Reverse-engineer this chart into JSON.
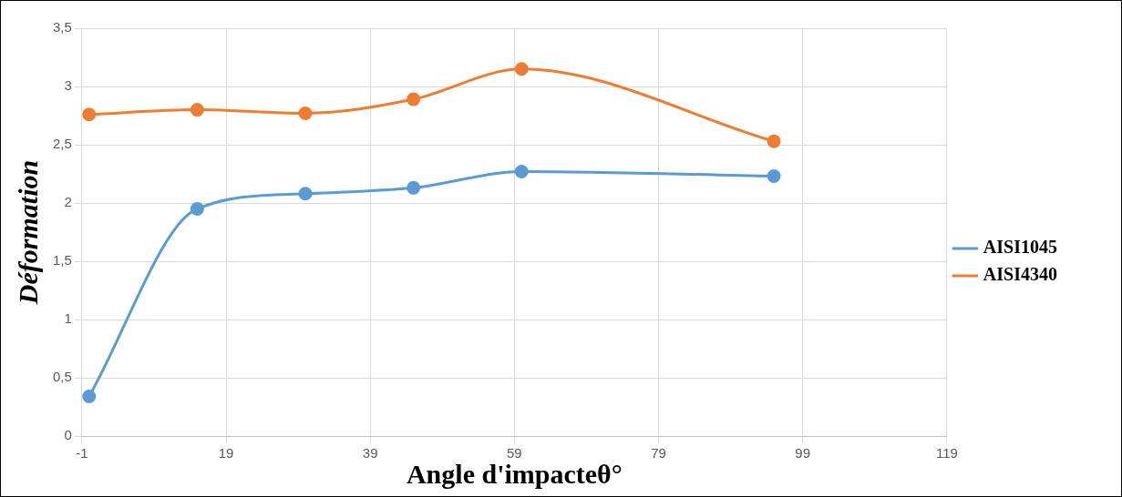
{
  "chart_data": {
    "type": "line",
    "xlabel": "Angle d'impacteθ°",
    "ylabel": "Déformation",
    "x": [
      0,
      15,
      30,
      45,
      60,
      95
    ],
    "series": [
      {
        "name": "AISI1045",
        "color": "#5b9bd5",
        "values": [
          0.34,
          1.95,
          2.08,
          2.13,
          2.27,
          2.23
        ]
      },
      {
        "name": "AISI4340",
        "color": "#ed7d31",
        "values": [
          2.76,
          2.8,
          2.77,
          2.89,
          3.15,
          2.53
        ]
      }
    ],
    "xlim": [
      -1,
      119
    ],
    "xticks": [
      -1,
      19,
      39,
      59,
      79,
      99,
      119
    ],
    "ylim": [
      0,
      3.5
    ],
    "yticks": [
      0,
      {
        "value": 0.5,
        "label": "0,5"
      },
      1,
      {
        "value": 1.5,
        "label": "1,5"
      },
      2,
      {
        "value": 2.5,
        "label": "2,5"
      },
      3,
      {
        "value": 3.5,
        "label": "3,5"
      }
    ],
    "grid": true,
    "legend": "right",
    "marker": "circle",
    "line_style": "solid"
  }
}
